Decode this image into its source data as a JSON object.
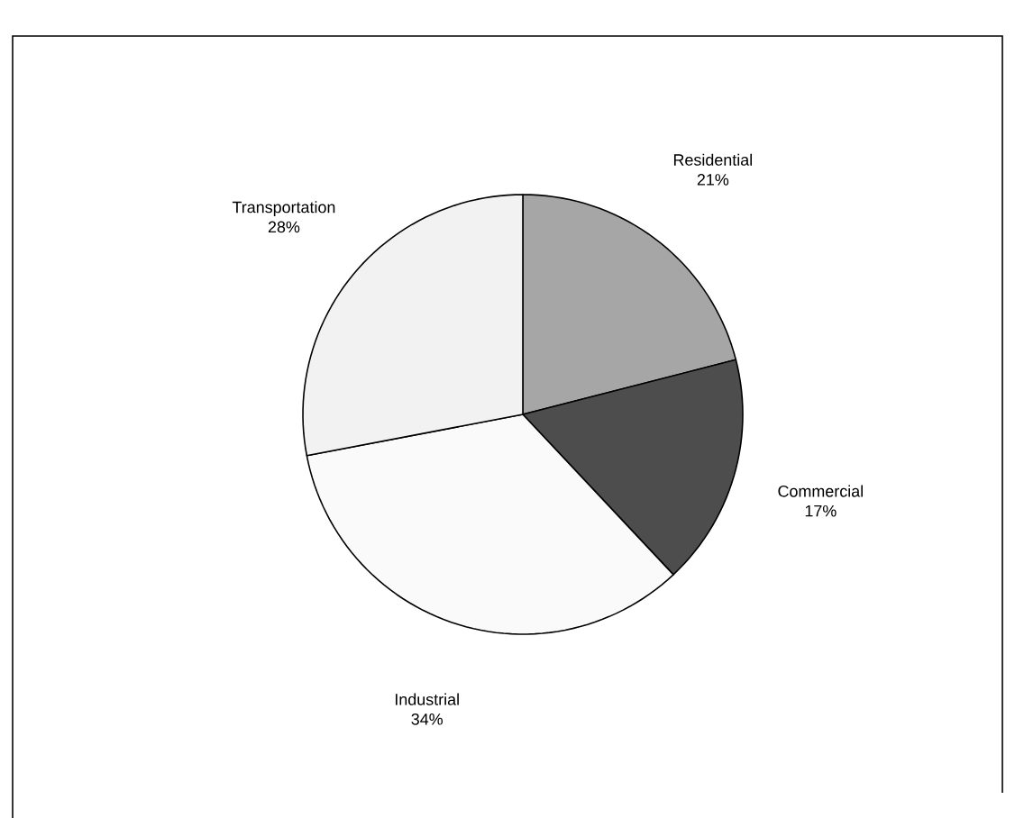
{
  "chart_data": {
    "type": "pie",
    "categories": [
      "Residential",
      "Commercial",
      "Industrial",
      "Transportation"
    ],
    "values": [
      21,
      17,
      34,
      28
    ],
    "colors": [
      "#a6a6a6",
      "#4d4d4d",
      "#fafafa",
      "#f2f2f2"
    ],
    "value_labels": [
      "21%",
      "17%",
      "34%",
      "28%"
    ]
  }
}
